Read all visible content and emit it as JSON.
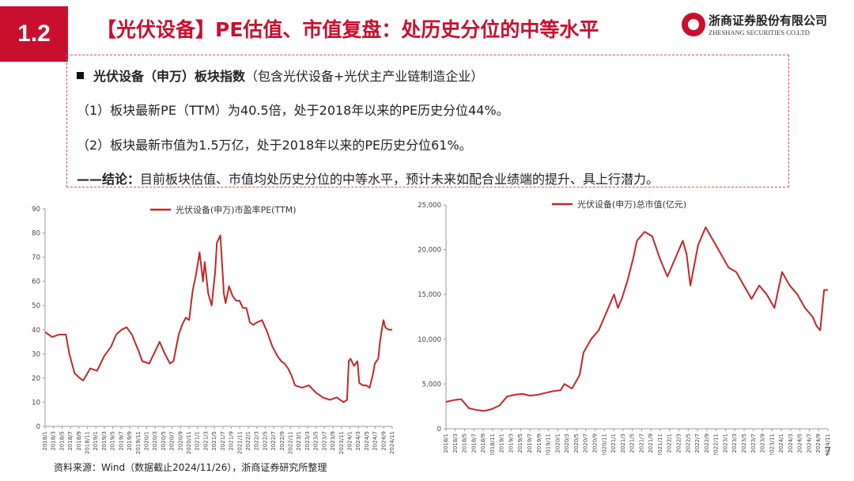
{
  "section": "1.2",
  "title": "【光伏设备】PE估值、市值复盘：处历史分位的中等水平",
  "logo": {
    "cn": "浙商证券股份有限公司",
    "en": "ZHESHANG SECURITIES CO.LTD"
  },
  "summary": {
    "heading_bold": "光伏设备（申万）板块指数",
    "heading_rest": "（包含光伏设备+光伏主产业链制造企业）",
    "point1": "（1）板块最新PE（TTM）为40.5倍，处于2018年以来的PE历史分位44%。",
    "point2": "（2）板块最新市值为1.5万亿，处于2018年以来的PE历史分位61%。",
    "conclusion_bold": "——结论：",
    "conclusion_rest": "目前板块估值、市值均处历史分位的中等水平，预计未来如配合业绩端的提升、具上行潜力。"
  },
  "colors": {
    "brand": "#c8102e",
    "series": "#c0282b"
  },
  "chart_data": [
    {
      "type": "line",
      "title": "",
      "legend": "光伏设备(申万)市盈率PE(TTM)",
      "ylim": [
        0,
        90
      ],
      "yticks": [
        "0",
        "10",
        "20",
        "30",
        "40",
        "50",
        "60",
        "70",
        "80",
        "90"
      ],
      "xlabels": [
        "2018/1",
        "2018/3",
        "2018/5",
        "2018/7",
        "2018/9",
        "2018/11",
        "2019/1",
        "2019/3",
        "2019/5",
        "2019/7",
        "2019/9",
        "2019/11",
        "2020/1",
        "2020/3",
        "2020/5",
        "2020/7",
        "2020/9",
        "2020/11",
        "2021/1",
        "2021/3",
        "2021/5",
        "2021/7",
        "2021/9",
        "2021/11",
        "2022/1",
        "2022/3",
        "2022/5",
        "2022/7",
        "2022/9",
        "2022/11",
        "2023/1",
        "2023/3",
        "2023/5",
        "2023/7",
        "2023/9",
        "2023/11",
        "2024/1",
        "2024/3",
        "2024/5",
        "2024/7",
        "2024/9",
        "2024/11"
      ],
      "t": [
        0,
        0.02,
        0.04,
        0.06,
        0.07,
        0.085,
        0.1,
        0.11,
        0.13,
        0.15,
        0.17,
        0.19,
        0.205,
        0.22,
        0.235,
        0.25,
        0.27,
        0.28,
        0.3,
        0.31,
        0.33,
        0.345,
        0.36,
        0.37,
        0.385,
        0.395,
        0.405,
        0.415,
        0.425,
        0.435,
        0.445,
        0.455,
        0.46,
        0.47,
        0.48,
        0.49,
        0.495,
        0.505,
        0.515,
        0.52,
        0.53,
        0.54,
        0.55,
        0.56,
        0.57,
        0.58,
        0.59,
        0.6,
        0.61,
        0.625,
        0.64,
        0.655,
        0.67,
        0.68,
        0.69,
        0.7,
        0.71,
        0.72,
        0.74,
        0.76,
        0.78,
        0.8,
        0.82,
        0.84,
        0.86,
        0.87,
        0.875,
        0.88,
        0.89,
        0.9,
        0.905,
        0.915,
        0.925,
        0.935,
        0.945,
        0.95,
        0.955,
        0.96,
        0.965,
        0.97,
        0.975,
        0.98,
        0.99,
        1.0
      ],
      "values": [
        39,
        37,
        38,
        38,
        30,
        22,
        20,
        19,
        24,
        23,
        29,
        33,
        38,
        40,
        41,
        38,
        31,
        27,
        26,
        29,
        35,
        30,
        26,
        27,
        38,
        42,
        45,
        44,
        56,
        63,
        72,
        60,
        68,
        55,
        50,
        64,
        76,
        79,
        55,
        51,
        58,
        54,
        52,
        52,
        49,
        49,
        43,
        42,
        43,
        44,
        39,
        33,
        29,
        27,
        26,
        24,
        21,
        17,
        16,
        17,
        14,
        12,
        11,
        12,
        10,
        11,
        27,
        28,
        25,
        27,
        18,
        17,
        17,
        16,
        22,
        26,
        27,
        28,
        35,
        40,
        44,
        41,
        40,
        40
      ]
    },
    {
      "type": "line",
      "title": "",
      "legend": "光伏设备(申万)总市值(亿元)",
      "ylim": [
        0,
        25000
      ],
      "yticks": [
        "0",
        "5,000",
        "10,000",
        "15,000",
        "20,000",
        "25,000"
      ],
      "xlabels": [
        "2018/1",
        "2018/3",
        "2018/5",
        "2018/7",
        "2018/9",
        "2018/11",
        "2019/1",
        "2019/3",
        "2019/5",
        "2019/7",
        "2019/9",
        "2019/11",
        "2020/1",
        "2020/3",
        "2020/5",
        "2020/7",
        "2020/9",
        "2020/11",
        "2021/1",
        "2021/3",
        "2021/5",
        "2021/7",
        "2021/9",
        "2021/11",
        "2022/1",
        "2022/3",
        "2022/5",
        "2022/7",
        "2022/9",
        "2022/11",
        "2023/1",
        "2023/3",
        "2023/5",
        "2023/7",
        "2023/9",
        "2023/11",
        "2024/1",
        "2024/3",
        "2024/5",
        "2024/7",
        "2024/9",
        "2024/11"
      ],
      "t": [
        0,
        0.02,
        0.04,
        0.06,
        0.08,
        0.1,
        0.12,
        0.14,
        0.16,
        0.18,
        0.2,
        0.22,
        0.24,
        0.26,
        0.28,
        0.3,
        0.31,
        0.33,
        0.35,
        0.36,
        0.38,
        0.4,
        0.42,
        0.44,
        0.45,
        0.46,
        0.475,
        0.49,
        0.5,
        0.52,
        0.54,
        0.56,
        0.58,
        0.6,
        0.62,
        0.63,
        0.64,
        0.66,
        0.68,
        0.7,
        0.72,
        0.74,
        0.76,
        0.78,
        0.8,
        0.82,
        0.84,
        0.86,
        0.88,
        0.9,
        0.92,
        0.94,
        0.96,
        0.97,
        0.98,
        0.99,
        1.0
      ],
      "values": [
        3000,
        3200,
        3300,
        2300,
        2100,
        2000,
        2200,
        2600,
        3600,
        3800,
        3900,
        3700,
        3800,
        4000,
        4200,
        4300,
        5000,
        4500,
        6000,
        8500,
        10000,
        11000,
        13000,
        15000,
        13500,
        14500,
        16500,
        19000,
        21000,
        22000,
        21500,
        19000,
        17000,
        19000,
        21000,
        19500,
        16000,
        20500,
        22500,
        21000,
        19500,
        18000,
        17500,
        16000,
        14500,
        16000,
        15000,
        13500,
        17500,
        16000,
        15000,
        13500,
        12500,
        11500,
        11000,
        15500,
        15500
      ]
    }
  ],
  "source": "资料来源：Wind（数据截止2024/11/26），浙商证券研究所整理",
  "page_number": "7"
}
